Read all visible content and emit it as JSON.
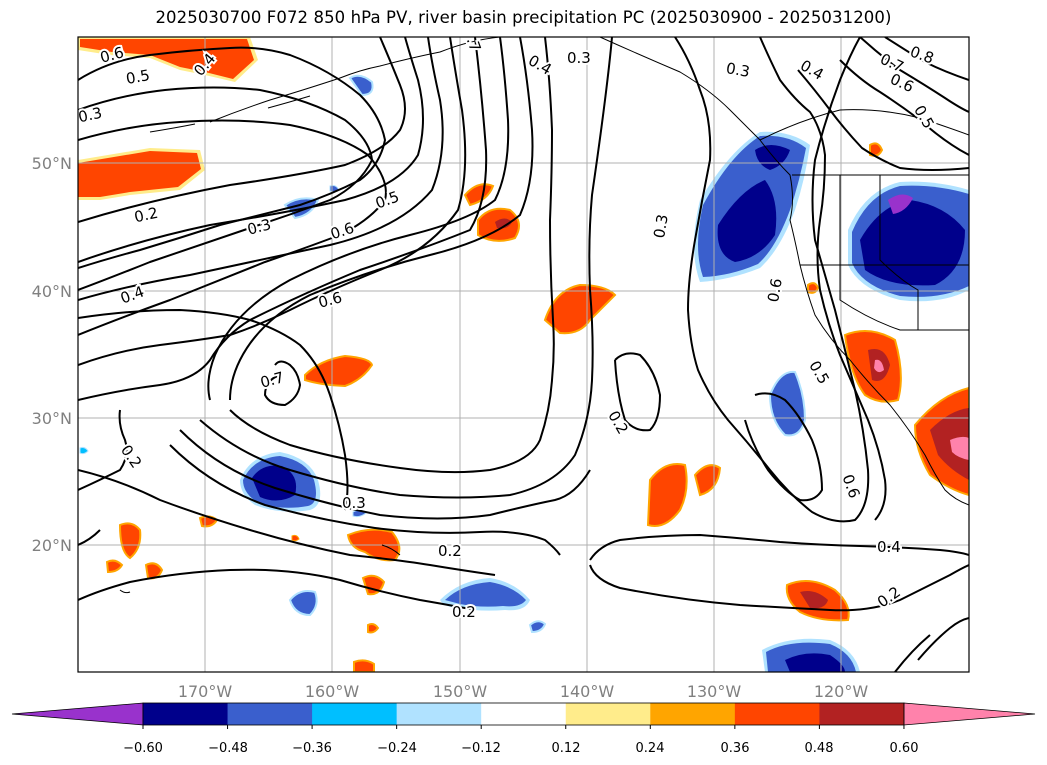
{
  "title": "2025030700 F072 850 hPa PV, river basin precipitation PC (2025030900 - 2025031200)",
  "map": {
    "lat_labels": [
      "50°N",
      "40°N",
      "30°N",
      "20°N"
    ],
    "lon_labels": [
      "170°W",
      "160°W",
      "150°W",
      "140°W",
      "130°W",
      "120°W"
    ],
    "contour_labels": [
      "0.6",
      "0.5",
      "0.4",
      "0.3",
      "0.2",
      "0.3",
      "0.5",
      "0.6",
      "0.4",
      "0.6",
      "0.7",
      "0.2",
      "0.3",
      "0.2",
      "0.2",
      "0.7",
      "0.4",
      "0.3",
      "0.3",
      "0.4",
      "0.8",
      "0.7",
      "0.6",
      "0.5",
      "0.3",
      "0.6",
      "0.5",
      "0.2",
      "0.6",
      "0.4",
      "0.2"
    ]
  },
  "colorbar": {
    "tick_labels": [
      "−0.60",
      "−0.48",
      "−0.36",
      "−0.24",
      "−0.12",
      "0.12",
      "0.24",
      "0.36",
      "0.48",
      "0.60"
    ],
    "colors": [
      "#9932cc",
      "#00008b",
      "#3a5fcd",
      "#00bfff",
      "#b0e2ff",
      "#ffffff",
      "#ffec8b",
      "#ffa500",
      "#ff4500",
      "#b22222",
      "#ff82ab"
    ]
  }
}
